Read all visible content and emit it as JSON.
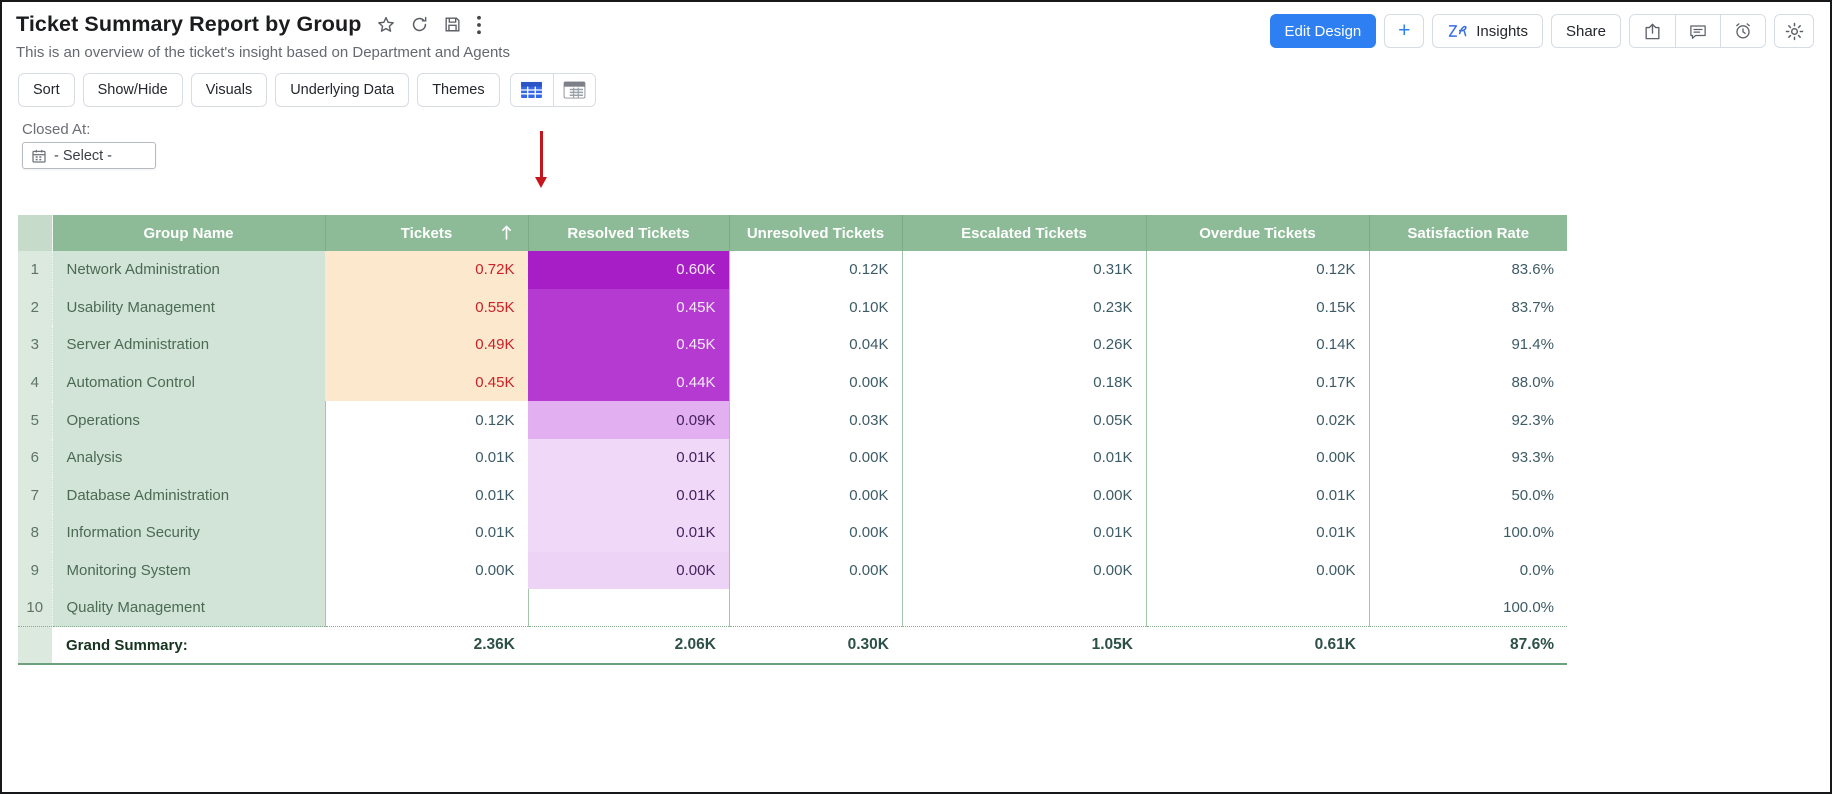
{
  "header": {
    "title": "Ticket Summary Report by Group",
    "subtitle": "This is an overview of the ticket's insight based on Department and Agents",
    "title_icons": [
      "star-icon",
      "refresh-icon",
      "save-icon",
      "kebab-menu-icon"
    ],
    "actions": {
      "edit_design": "Edit Design",
      "add": "+",
      "insights": "Insights",
      "share": "Share",
      "icon_buttons": [
        "export-icon",
        "comment-icon",
        "alarm-icon",
        "gear-icon"
      ]
    }
  },
  "toolbar": {
    "buttons": [
      "Sort",
      "Show/Hide",
      "Visuals",
      "Underlying Data",
      "Themes"
    ],
    "view_toggle": [
      "table-view-icon (selected, blue)",
      "pivot-view-icon"
    ]
  },
  "filter": {
    "label": "Closed At:",
    "value": "- Select -",
    "icon": "calendar-icon"
  },
  "annotation": {
    "type": "red-arrow-down",
    "target_column": "Resolved Tickets",
    "color": "#c4161c"
  },
  "table": {
    "columns": [
      "Group Name",
      "Tickets",
      "Resolved Tickets",
      "Unresolved Tickets",
      "Escalated Tickets",
      "Overdue Tickets",
      "Satisfaction Rate"
    ],
    "sort": {
      "column": "Tickets",
      "icon": "arrow-up"
    },
    "rows": [
      {
        "num": "1",
        "group": "Network Administration",
        "cells": [
          {
            "v": "0.72K",
            "c": "peach"
          },
          {
            "v": "0.60K",
            "c": "p1"
          },
          {
            "v": "0.12K",
            "c": ""
          },
          {
            "v": "0.31K",
            "c": ""
          },
          {
            "v": "0.12K",
            "c": ""
          },
          {
            "v": "83.6%",
            "c": ""
          }
        ]
      },
      {
        "num": "2",
        "group": "Usability Management",
        "cells": [
          {
            "v": "0.55K",
            "c": "peach"
          },
          {
            "v": "0.45K",
            "c": "p2"
          },
          {
            "v": "0.10K",
            "c": ""
          },
          {
            "v": "0.23K",
            "c": ""
          },
          {
            "v": "0.15K",
            "c": ""
          },
          {
            "v": "83.7%",
            "c": ""
          }
        ]
      },
      {
        "num": "3",
        "group": "Server Administration",
        "cells": [
          {
            "v": "0.49K",
            "c": "peach"
          },
          {
            "v": "0.45K",
            "c": "p2"
          },
          {
            "v": "0.04K",
            "c": ""
          },
          {
            "v": "0.26K",
            "c": ""
          },
          {
            "v": "0.14K",
            "c": ""
          },
          {
            "v": "91.4%",
            "c": ""
          }
        ]
      },
      {
        "num": "4",
        "group": "Automation Control",
        "cells": [
          {
            "v": "0.45K",
            "c": "peach"
          },
          {
            "v": "0.44K",
            "c": "p2"
          },
          {
            "v": "0.00K",
            "c": ""
          },
          {
            "v": "0.18K",
            "c": ""
          },
          {
            "v": "0.17K",
            "c": ""
          },
          {
            "v": "88.0%",
            "c": ""
          }
        ]
      },
      {
        "num": "5",
        "group": "Operations",
        "cells": [
          {
            "v": "0.12K",
            "c": ""
          },
          {
            "v": "0.09K",
            "c": "p3"
          },
          {
            "v": "0.03K",
            "c": ""
          },
          {
            "v": "0.05K",
            "c": ""
          },
          {
            "v": "0.02K",
            "c": ""
          },
          {
            "v": "92.3%",
            "c": ""
          }
        ]
      },
      {
        "num": "6",
        "group": "Analysis",
        "cells": [
          {
            "v": "0.01K",
            "c": ""
          },
          {
            "v": "0.01K",
            "c": "p4"
          },
          {
            "v": "0.00K",
            "c": ""
          },
          {
            "v": "0.01K",
            "c": ""
          },
          {
            "v": "0.00K",
            "c": ""
          },
          {
            "v": "93.3%",
            "c": ""
          }
        ]
      },
      {
        "num": "7",
        "group": "Database Administration",
        "cells": [
          {
            "v": "0.01K",
            "c": ""
          },
          {
            "v": "0.01K",
            "c": "p4"
          },
          {
            "v": "0.00K",
            "c": ""
          },
          {
            "v": "0.00K",
            "c": ""
          },
          {
            "v": "0.01K",
            "c": ""
          },
          {
            "v": "50.0%",
            "c": ""
          }
        ]
      },
      {
        "num": "8",
        "group": "Information Security",
        "cells": [
          {
            "v": "0.01K",
            "c": ""
          },
          {
            "v": "0.01K",
            "c": "p4"
          },
          {
            "v": "0.00K",
            "c": ""
          },
          {
            "v": "0.01K",
            "c": ""
          },
          {
            "v": "0.01K",
            "c": ""
          },
          {
            "v": "100.0%",
            "c": ""
          }
        ]
      },
      {
        "num": "9",
        "group": "Monitoring System",
        "cells": [
          {
            "v": "0.00K",
            "c": ""
          },
          {
            "v": "0.00K",
            "c": "p5"
          },
          {
            "v": "0.00K",
            "c": ""
          },
          {
            "v": "0.00K",
            "c": ""
          },
          {
            "v": "0.00K",
            "c": ""
          },
          {
            "v": "0.0%",
            "c": ""
          }
        ]
      },
      {
        "num": "10",
        "group": "Quality Management",
        "cells": [
          {
            "v": "",
            "c": ""
          },
          {
            "v": "",
            "c": ""
          },
          {
            "v": "",
            "c": ""
          },
          {
            "v": "",
            "c": ""
          },
          {
            "v": "",
            "c": ""
          },
          {
            "v": "100.0%",
            "c": ""
          }
        ]
      }
    ],
    "summary": {
      "label": "Grand Summary:",
      "values": [
        "2.36K",
        "2.06K",
        "0.30K",
        "1.05K",
        "0.61K",
        "87.6%"
      ]
    }
  },
  "colors": {
    "accent_blue": "#2d7ff2",
    "header_green": "#8dbb97",
    "row_label_green": "#d2e4d7",
    "row_number_green": "#dbe9de",
    "heat_peach_bg": "#fbe8cd",
    "heat_red_text": "#cb2127",
    "heat_purple_dark": "#a81ec6",
    "heat_purple_mid": "#b43ad2",
    "heat_purple_light": "#e2aff0",
    "heat_purple_faint": "#f0d9f8",
    "annotation_red": "#c4161c",
    "value_text": "#3d5b66"
  }
}
